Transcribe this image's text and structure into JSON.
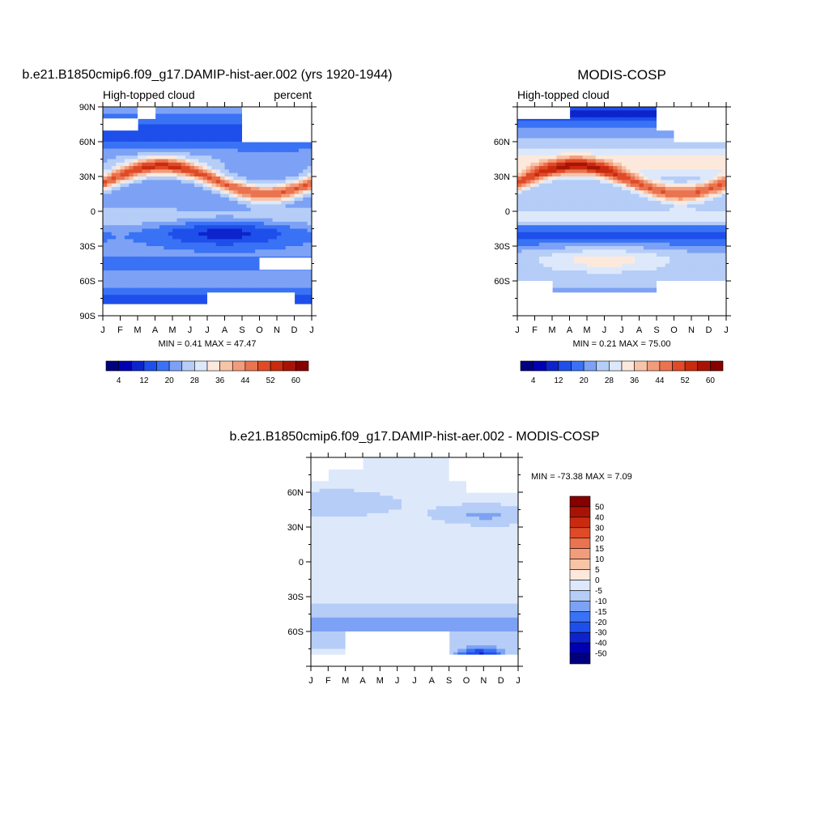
{
  "palette": {
    "seq": [
      "#00007f",
      "#0000b3",
      "#0d24cc",
      "#1f4fea",
      "#3a72f5",
      "#7da2f5",
      "#b5cdf7",
      "#dde9fb",
      "#fde9db",
      "#f8c4a7",
      "#f29c7c",
      "#ea7350",
      "#e04a26",
      "#c92b0f",
      "#a71406",
      "#860000"
    ],
    "diff": [
      "#00007f",
      "#0000b3",
      "#0d24cc",
      "#1f4fea",
      "#3a72f5",
      "#7da2f5",
      "#b5cdf7",
      "#dde9fb",
      "#fde9db",
      "#f8c4a7",
      "#f29c7c",
      "#ea7350",
      "#e04a26",
      "#c92b0f",
      "#a71406",
      "#860000"
    ]
  },
  "chart_data": [
    {
      "type": "heatmap",
      "title": "b.e21.B1850cmip6.f09_g17.DAMIP-hist-aer.002 (yrs 1920-1944)",
      "subtitle_left": "High-topped cloud",
      "subtitle_right": "percent",
      "stats": "MIN =   0.41 MAX =  47.47",
      "x_ticks": [
        "J",
        "F",
        "M",
        "A",
        "M",
        "J",
        "J",
        "A",
        "S",
        "O",
        "N",
        "D",
        "J"
      ],
      "y_ticks": [
        "90N",
        "60N",
        "30N",
        "0",
        "30S",
        "60S",
        "90S"
      ],
      "ylim": [
        -90,
        90
      ],
      "levels": [
        2,
        4,
        8,
        12,
        16,
        20,
        24,
        28,
        32,
        36,
        40,
        44,
        48,
        52,
        56,
        60
      ],
      "colorbar_labels": [
        "4",
        "12",
        "20",
        "28",
        "36",
        "44",
        "52",
        "60"
      ],
      "missing_cells": [
        [
          0,
          2
        ],
        [
          0,
          8
        ],
        [
          0,
          9
        ],
        [
          0,
          10
        ],
        [
          0,
          11
        ],
        [
          1,
          0
        ],
        [
          1,
          1
        ],
        [
          1,
          8
        ],
        [
          1,
          9
        ],
        [
          1,
          10
        ],
        [
          1,
          11
        ],
        [
          2,
          8
        ],
        [
          2,
          9
        ],
        [
          2,
          10
        ],
        [
          2,
          11
        ],
        [
          13,
          9
        ],
        [
          13,
          10
        ],
        [
          13,
          11
        ],
        [
          16,
          6
        ],
        [
          16,
          7
        ],
        [
          16,
          8
        ],
        [
          16,
          9
        ],
        [
          16,
          10
        ],
        [
          17,
          0
        ],
        [
          17,
          1
        ],
        [
          17,
          2
        ],
        [
          17,
          3
        ],
        [
          17,
          4
        ],
        [
          17,
          5
        ],
        [
          17,
          6
        ],
        [
          17,
          7
        ],
        [
          17,
          8
        ],
        [
          17,
          9
        ],
        [
          17,
          10
        ],
        [
          17,
          11
        ]
      ]
    },
    {
      "type": "heatmap",
      "title": "MODIS-COSP",
      "subtitle_left": "High-topped cloud",
      "subtitle_right": "",
      "stats": "MIN =   0.21 MAX =  75.00",
      "x_ticks": [
        "J",
        "F",
        "M",
        "A",
        "M",
        "J",
        "J",
        "A",
        "S",
        "O",
        "N",
        "D",
        "J"
      ],
      "y_ticks": [
        "",
        "60N",
        "30N",
        "0",
        "30S",
        "60S",
        ""
      ],
      "ylim": [
        -90,
        90
      ],
      "levels": [
        2,
        4,
        8,
        12,
        16,
        20,
        24,
        28,
        32,
        36,
        40,
        44,
        48,
        52,
        56,
        60
      ],
      "colorbar_labels": [
        "4",
        "12",
        "20",
        "28",
        "36",
        "44",
        "52",
        "60"
      ],
      "missing_cells": [
        [
          0,
          0
        ],
        [
          0,
          1
        ],
        [
          0,
          2
        ],
        [
          0,
          8
        ],
        [
          0,
          9
        ],
        [
          0,
          10
        ],
        [
          0,
          11
        ],
        [
          1,
          8
        ],
        [
          1,
          9
        ],
        [
          1,
          10
        ],
        [
          1,
          11
        ],
        [
          2,
          9
        ],
        [
          2,
          10
        ],
        [
          2,
          11
        ],
        [
          15,
          0
        ],
        [
          15,
          1
        ],
        [
          15,
          8
        ],
        [
          15,
          9
        ],
        [
          15,
          10
        ],
        [
          15,
          11
        ],
        [
          16,
          0
        ],
        [
          16,
          1
        ],
        [
          16,
          2
        ],
        [
          16,
          3
        ],
        [
          16,
          4
        ],
        [
          16,
          5
        ],
        [
          16,
          6
        ],
        [
          16,
          7
        ],
        [
          16,
          8
        ],
        [
          16,
          9
        ],
        [
          16,
          10
        ],
        [
          16,
          11
        ],
        [
          17,
          0
        ],
        [
          17,
          1
        ],
        [
          17,
          2
        ],
        [
          17,
          3
        ],
        [
          17,
          4
        ],
        [
          17,
          5
        ],
        [
          17,
          6
        ],
        [
          17,
          7
        ],
        [
          17,
          8
        ],
        [
          17,
          9
        ],
        [
          17,
          10
        ],
        [
          17,
          11
        ]
      ]
    },
    {
      "type": "heatmap",
      "title": "b.e21.B1850cmip6.f09_g17.DAMIP-hist-aer.002 - MODIS-COSP",
      "subtitle_left": "",
      "subtitle_right": "",
      "stats": "MIN = -73.38 MAX =   7.09",
      "x_ticks": [
        "J",
        "F",
        "M",
        "A",
        "M",
        "J",
        "J",
        "A",
        "S",
        "O",
        "N",
        "D",
        "J"
      ],
      "y_ticks": [
        "",
        "60N",
        "30N",
        "0",
        "30S",
        "60S",
        ""
      ],
      "ylim": [
        -90,
        90
      ],
      "levels": [
        -50,
        -40,
        -30,
        -20,
        -15,
        -10,
        -5,
        0,
        5,
        10,
        15,
        20,
        30,
        40,
        50
      ],
      "colorbar_labels": [
        "50",
        "40",
        "30",
        "20",
        "15",
        "10",
        "5",
        "0",
        "-5",
        "-10",
        "-15",
        "-20",
        "-30",
        "-40",
        "-50"
      ],
      "missing_cells": [
        [
          0,
          0
        ],
        [
          0,
          1
        ],
        [
          0,
          2
        ],
        [
          0,
          8
        ],
        [
          0,
          9
        ],
        [
          0,
          10
        ],
        [
          0,
          11
        ],
        [
          1,
          0
        ],
        [
          1,
          8
        ],
        [
          1,
          9
        ],
        [
          1,
          10
        ],
        [
          1,
          11
        ],
        [
          2,
          9
        ],
        [
          2,
          10
        ],
        [
          2,
          11
        ],
        [
          15,
          2
        ],
        [
          15,
          3
        ],
        [
          15,
          4
        ],
        [
          15,
          5
        ],
        [
          15,
          6
        ],
        [
          15,
          7
        ],
        [
          16,
          2
        ],
        [
          16,
          3
        ],
        [
          16,
          4
        ],
        [
          16,
          5
        ],
        [
          16,
          6
        ],
        [
          16,
          7
        ],
        [
          17,
          0
        ],
        [
          17,
          1
        ],
        [
          17,
          2
        ],
        [
          17,
          3
        ],
        [
          17,
          4
        ],
        [
          17,
          5
        ],
        [
          17,
          6
        ],
        [
          17,
          7
        ],
        [
          17,
          8
        ],
        [
          17,
          9
        ],
        [
          17,
          10
        ],
        [
          17,
          11
        ]
      ]
    }
  ]
}
